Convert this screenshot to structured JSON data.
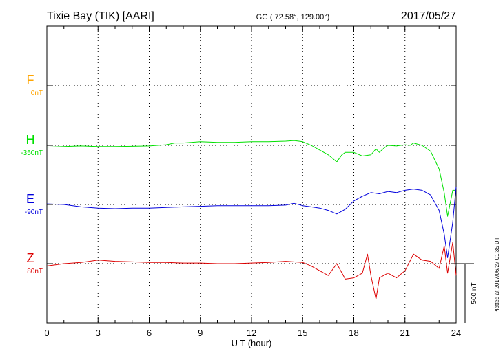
{
  "header": {
    "station": "Tixie Bay (TIK)  [AARI]",
    "coords": "GG ( 72.58°, 129.00°)",
    "date": "2017/05/27"
  },
  "footer": {
    "plotted": "Plotted at 2017/06/27 01:35 UT",
    "scale_label": "500 nT"
  },
  "chart_data": {
    "type": "line",
    "xlabel": "U T (hour)",
    "xlim": [
      0,
      24
    ],
    "x_ticks": [
      "0",
      "3",
      "6",
      "9",
      "12",
      "15",
      "18",
      "21",
      "24"
    ],
    "grid": true,
    "scale_nT": 500,
    "series": [
      {
        "name": "F",
        "baseline": "0nT",
        "color": "#ffa500",
        "x": [],
        "values": []
      },
      {
        "name": "H",
        "baseline": "-350nT",
        "color": "#00e000",
        "x": [
          0,
          1,
          2,
          3,
          4,
          5,
          6,
          7,
          7.5,
          8,
          9,
          10,
          11,
          12,
          13,
          14,
          14.5,
          15,
          15.5,
          16,
          16.5,
          17,
          17.3,
          17.5,
          18,
          18.5,
          19,
          19.3,
          19.5,
          19.8,
          20,
          20.5,
          21,
          21.3,
          21.5,
          22,
          22.5,
          23,
          23.3,
          23.5,
          23.8,
          24
        ],
        "values": [
          -15,
          -10,
          -5,
          -10,
          -10,
          -8,
          -5,
          5,
          20,
          20,
          30,
          25,
          25,
          30,
          30,
          35,
          40,
          30,
          0,
          -40,
          -80,
          -140,
          -80,
          -60,
          -60,
          -90,
          -80,
          -30,
          -60,
          -20,
          0,
          -5,
          5,
          0,
          20,
          0,
          -50,
          -200,
          -400,
          -600,
          -380,
          -380
        ]
      },
      {
        "name": "E",
        "baseline": "-90nT",
        "color": "#0000dd",
        "x": [
          0,
          1,
          2,
          3,
          4,
          5,
          6,
          7,
          8,
          9,
          10,
          11,
          12,
          13,
          14,
          14.5,
          15,
          15.5,
          16,
          16.5,
          17,
          17.5,
          18,
          18.5,
          19,
          19.5,
          20,
          20.5,
          21,
          21.5,
          22,
          22.5,
          23,
          23.3,
          23.5,
          23.8,
          24
        ],
        "values": [
          5,
          0,
          -20,
          -30,
          -35,
          -30,
          -30,
          -25,
          -20,
          -15,
          -10,
          -10,
          -10,
          -10,
          -5,
          10,
          -10,
          -20,
          -30,
          -50,
          -80,
          -40,
          30,
          70,
          100,
          90,
          110,
          100,
          120,
          130,
          120,
          80,
          -50,
          -250,
          -450,
          -150,
          150
        ]
      },
      {
        "name": "Z",
        "baseline": "80nT",
        "color": "#dd0000",
        "x": [
          0,
          0.5,
          1,
          2,
          3,
          4,
          5,
          6,
          7,
          8,
          9,
          10,
          11,
          12,
          13,
          14,
          15,
          15.5,
          16,
          16.5,
          17,
          17.5,
          18,
          18.5,
          18.8,
          19,
          19.3,
          19.5,
          20,
          20.5,
          21,
          21.5,
          22,
          22.5,
          23,
          23.3,
          23.5,
          23.8,
          24
        ],
        "values": [
          -20,
          -10,
          0,
          10,
          30,
          20,
          15,
          10,
          10,
          5,
          5,
          0,
          0,
          5,
          10,
          20,
          10,
          -20,
          -60,
          -100,
          0,
          -130,
          -120,
          -80,
          80,
          -100,
          -300,
          -120,
          -80,
          -120,
          -60,
          80,
          30,
          20,
          -40,
          150,
          -80,
          180,
          -100
        ]
      }
    ]
  }
}
